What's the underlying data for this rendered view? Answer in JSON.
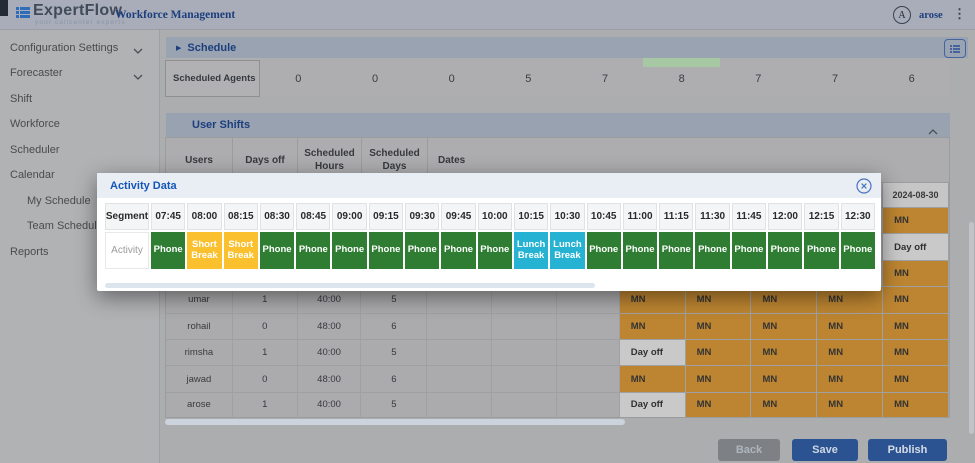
{
  "header": {
    "logo_text": "ExpertFlow",
    "logo_tagline": "your callcenter experts",
    "app_title": "Workforce Management",
    "user_initial": "A",
    "user_name": "arose"
  },
  "sidebar": {
    "items": [
      {
        "label": "Configuration Settings",
        "chevron": true,
        "indent": false
      },
      {
        "label": "Forecaster",
        "chevron": true,
        "indent": false
      },
      {
        "label": "Shift",
        "chevron": false,
        "indent": false
      },
      {
        "label": "Workforce",
        "chevron": false,
        "indent": false
      },
      {
        "label": "Scheduler",
        "chevron": false,
        "indent": false
      },
      {
        "label": "Calendar",
        "chevron": false,
        "indent": false
      },
      {
        "label": "My Schedule",
        "chevron": false,
        "indent": true
      },
      {
        "label": "Team Schedule",
        "chevron": false,
        "indent": true
      },
      {
        "label": "Reports",
        "chevron": false,
        "indent": false
      }
    ]
  },
  "schedule": {
    "title": "Schedule",
    "agents_label": "Scheduled Agents",
    "agent_counts": [
      "0",
      "0",
      "0",
      "5",
      "7",
      "8",
      "7",
      "7",
      "6"
    ],
    "highlight_index": 5
  },
  "user_shifts": {
    "title": "User Shifts",
    "col_users": "Users",
    "col_days_off": "Days off",
    "col_sch_hours": "Scheduled Hours",
    "col_sch_days": "Scheduled Days",
    "col_dates": "Dates",
    "visible_date": "2024-08-30",
    "covered_rows": [
      {
        "last_cell": "MN"
      },
      {
        "last_cell": "Day off"
      },
      {
        "last_cell": "MN"
      }
    ],
    "rows": [
      {
        "user": "umar",
        "days_off": "1",
        "hours": "40:00",
        "days": "5",
        "cells": [
          "",
          "",
          "",
          "MN",
          "MN",
          "MN",
          "MN",
          "MN"
        ]
      },
      {
        "user": "rohail",
        "days_off": "0",
        "hours": "48:00",
        "days": "6",
        "cells": [
          "",
          "",
          "",
          "MN",
          "MN",
          "MN",
          "MN",
          "MN"
        ]
      },
      {
        "user": "rimsha",
        "days_off": "1",
        "hours": "40:00",
        "days": "5",
        "cells": [
          "",
          "",
          "",
          "Day off",
          "MN",
          "MN",
          "MN",
          "MN"
        ]
      },
      {
        "user": "jawad",
        "days_off": "0",
        "hours": "48:00",
        "days": "6",
        "cells": [
          "",
          "",
          "",
          "MN",
          "MN",
          "MN",
          "MN",
          "MN"
        ]
      },
      {
        "user": "arose",
        "days_off": "1",
        "hours": "40:00",
        "days": "5",
        "cells": [
          "",
          "",
          "",
          "Day off",
          "MN",
          "MN",
          "MN",
          "MN"
        ]
      }
    ]
  },
  "modal": {
    "title": "Activity Data",
    "segment_label": "Segment",
    "activity_label": "Activity",
    "segments": [
      {
        "time": "07:45",
        "activity": "Phone"
      },
      {
        "time": "08:00",
        "activity": "Short Break"
      },
      {
        "time": "08:15",
        "activity": "Short Break"
      },
      {
        "time": "08:30",
        "activity": "Phone"
      },
      {
        "time": "08:45",
        "activity": "Phone"
      },
      {
        "time": "09:00",
        "activity": "Phone"
      },
      {
        "time": "09:15",
        "activity": "Phone"
      },
      {
        "time": "09:30",
        "activity": "Phone"
      },
      {
        "time": "09:45",
        "activity": "Phone"
      },
      {
        "time": "10:00",
        "activity": "Phone"
      },
      {
        "time": "10:15",
        "activity": "Lunch Break"
      },
      {
        "time": "10:30",
        "activity": "Lunch Break"
      },
      {
        "time": "10:45",
        "activity": "Phone"
      },
      {
        "time": "11:00",
        "activity": "Phone"
      },
      {
        "time": "11:15",
        "activity": "Phone"
      },
      {
        "time": "11:30",
        "activity": "Phone"
      },
      {
        "time": "11:45",
        "activity": "Phone"
      },
      {
        "time": "12:00",
        "activity": "Phone"
      },
      {
        "time": "12:15",
        "activity": "Phone"
      },
      {
        "time": "12:30",
        "activity": "Phone"
      }
    ]
  },
  "footer": {
    "back_label": "Back",
    "save_label": "Save",
    "publish_label": "Publish"
  },
  "colors": {
    "activity": {
      "Phone": "#2e7d32",
      "Short Break": "#fbc02d",
      "Lunch Break": "#26b3d3"
    },
    "cell_mn": "#bd8531",
    "cell_day_off": "#c9c9c9",
    "highlight_green": "#a6c8a2",
    "accent_blue": "#1c3e7d"
  }
}
